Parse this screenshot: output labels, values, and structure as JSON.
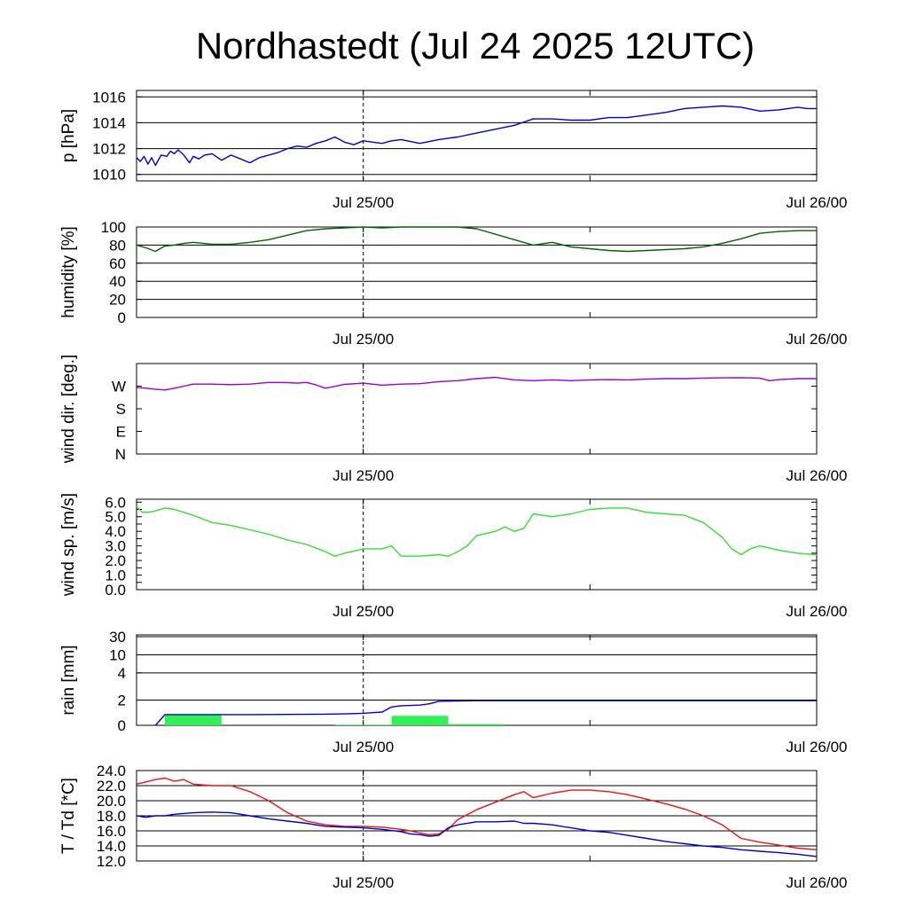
{
  "title": "Nordhastedt (Jul 24 2025 12UTC)",
  "colors": {
    "pressure": "#0000cc",
    "humidity": "#006400",
    "wind_dir": "#9900cc",
    "wind_speed": "#33dd33",
    "rain_accum": "#0000cc",
    "rain_bar": "#33ee55",
    "temperature": "#ee1111",
    "dewpoint": "#0000cc"
  },
  "chart_data": [
    {
      "type": "line",
      "name": "pressure",
      "ylabel": "p [hPa]",
      "x_ticks": [
        "Jul 25/00",
        "Jul 26/00"
      ],
      "x_range_hours": [
        0,
        36
      ],
      "ylim": [
        1009.5,
        1016.5
      ],
      "y_ticks": [
        1010,
        1012,
        1014,
        1016
      ],
      "y_tick_labels": [
        "1010",
        "1012",
        "1014",
        "1016"
      ],
      "grid_y": [
        1010,
        1012,
        1014,
        1016
      ],
      "series": [
        {
          "x": [
            0,
            0.2,
            0.4,
            0.6,
            0.8,
            1,
            1.3,
            1.6,
            1.8,
            2,
            2.2,
            2.5,
            2.8,
            3,
            3.3,
            3.6,
            4,
            4.5,
            5,
            5.5,
            6,
            6.5,
            7,
            7.5,
            8,
            8.5,
            9,
            9.5,
            10,
            10.5,
            11,
            11.5,
            12,
            12.5,
            13,
            13.5,
            14,
            15,
            16,
            17,
            18,
            19,
            20,
            21,
            22,
            23,
            24,
            25,
            26,
            27,
            28,
            29,
            30,
            31,
            32,
            33,
            34,
            35,
            35.5,
            36
          ],
          "y": [
            1011.3,
            1011.0,
            1011.4,
            1010.8,
            1011.3,
            1010.7,
            1011.5,
            1011.4,
            1011.8,
            1011.6,
            1011.9,
            1011.5,
            1010.9,
            1011.4,
            1011.2,
            1011.5,
            1011.6,
            1011.1,
            1011.5,
            1011.2,
            1010.9,
            1011.3,
            1011.5,
            1011.7,
            1012.0,
            1012.2,
            1012.1,
            1012.4,
            1012.6,
            1012.9,
            1012.5,
            1012.3,
            1012.6,
            1012.5,
            1012.4,
            1012.6,
            1012.7,
            1012.4,
            1012.7,
            1012.9,
            1013.2,
            1013.5,
            1013.8,
            1014.3,
            1014.3,
            1014.2,
            1014.2,
            1014.4,
            1014.4,
            1014.6,
            1014.8,
            1015.1,
            1015.2,
            1015.3,
            1015.2,
            1014.9,
            1015.0,
            1015.2,
            1015.1,
            1015.1
          ]
        }
      ]
    },
    {
      "type": "line",
      "name": "humidity",
      "ylabel": "humidity [%]",
      "x_ticks": [
        "Jul 25/00",
        "Jul 26/00"
      ],
      "x_range_hours": [
        0,
        36
      ],
      "ylim": [
        0,
        100
      ],
      "y_ticks": [
        0,
        20,
        40,
        60,
        80,
        100
      ],
      "y_tick_labels": [
        "0",
        "20",
        "40",
        "60",
        "80",
        "100"
      ],
      "grid_y": [
        20,
        40,
        60,
        80
      ],
      "series": [
        {
          "x": [
            0,
            0.5,
            1,
            1.5,
            2,
            2.5,
            3,
            4,
            5,
            6,
            7,
            8,
            9,
            10,
            11,
            12,
            13,
            14,
            15,
            16,
            17,
            18,
            19,
            20,
            21,
            22,
            23,
            24,
            25,
            26,
            27,
            28,
            29,
            30,
            31,
            32,
            33,
            34,
            35,
            36
          ],
          "y": [
            80,
            77,
            73,
            79,
            80,
            82,
            83,
            81,
            81,
            83,
            86,
            91,
            96,
            98,
            99,
            100,
            99,
            100,
            100,
            100,
            100,
            98,
            92,
            86,
            80,
            83,
            78,
            76,
            74,
            73,
            74,
            75,
            76,
            78,
            82,
            87,
            93,
            95,
            96,
            96
          ]
        }
      ]
    },
    {
      "type": "line",
      "name": "wind direction",
      "ylabel": "wind dir. [deg.]",
      "x_ticks": [
        "Jul 25/00",
        "Jul 26/00"
      ],
      "x_range_hours": [
        0,
        36
      ],
      "ylim": [
        0,
        360
      ],
      "y_ticks": [
        0,
        90,
        180,
        270
      ],
      "y_tick_labels": [
        "N",
        "E",
        "S",
        "W"
      ],
      "grid_y": [],
      "series": [
        {
          "x": [
            0,
            0.5,
            1,
            1.5,
            2,
            2.5,
            3,
            4,
            5,
            6,
            7,
            8,
            8.5,
            9,
            9.5,
            10,
            11,
            12,
            13,
            13.5,
            14,
            15,
            16,
            17,
            18,
            19,
            20,
            21,
            22,
            23,
            24,
            25,
            26,
            27,
            28,
            29,
            30,
            31,
            32,
            33,
            33.5,
            34,
            35,
            36
          ],
          "y": [
            265,
            262,
            258,
            255,
            262,
            270,
            278,
            278,
            276,
            278,
            285,
            284,
            282,
            285,
            275,
            262,
            277,
            282,
            274,
            276,
            278,
            280,
            288,
            292,
            300,
            305,
            295,
            292,
            295,
            292,
            295,
            296,
            295,
            298,
            300,
            300,
            302,
            303,
            304,
            302,
            292,
            296,
            300,
            300
          ]
        }
      ]
    },
    {
      "type": "line",
      "name": "wind speed",
      "ylabel": "wind sp. [m/s]",
      "x_ticks": [
        "Jul 25/00",
        "Jul 26/00"
      ],
      "x_range_hours": [
        0,
        36
      ],
      "ylim": [
        0,
        6.2
      ],
      "y_ticks": [
        0,
        0.5,
        1.0,
        1.5,
        2.0,
        2.5,
        3.0,
        3.5,
        4.0,
        4.5,
        5.0,
        5.5,
        6.0
      ],
      "y_tick_labels": [
        "0.0",
        "",
        "1.0",
        "",
        "2.0",
        "",
        "3.0",
        "",
        "4.0",
        "",
        "5.0",
        "",
        "6.0"
      ],
      "grid_y": [],
      "series": [
        {
          "x": [
            0,
            0.3,
            0.6,
            1,
            1.5,
            2,
            3,
            4,
            5,
            6,
            7,
            8,
            9,
            10,
            10.5,
            11,
            12,
            13,
            13.5,
            14,
            15,
            16,
            16.5,
            17,
            17.5,
            18,
            19,
            19.5,
            20,
            20.5,
            21,
            22,
            23,
            24,
            25,
            26,
            27,
            28,
            29,
            30,
            31,
            31.5,
            32,
            32.5,
            33,
            34,
            35,
            36
          ],
          "y": [
            5.7,
            5.3,
            5.3,
            5.4,
            5.6,
            5.5,
            5.1,
            4.6,
            4.4,
            4.1,
            3.8,
            3.4,
            3.1,
            2.6,
            2.3,
            2.5,
            2.8,
            2.8,
            3.0,
            2.3,
            2.3,
            2.4,
            2.3,
            2.6,
            3.0,
            3.7,
            4.0,
            4.3,
            4.0,
            4.2,
            5.2,
            5.0,
            5.2,
            5.5,
            5.6,
            5.6,
            5.3,
            5.2,
            5.1,
            4.6,
            3.6,
            2.8,
            2.4,
            2.8,
            3.0,
            2.7,
            2.5,
            2.4
          ]
        }
      ]
    },
    {
      "type": "bar",
      "name": "rain",
      "ylabel": "rain [mm]",
      "x_ticks": [
        "Jul 25/00",
        "Jul 26/00"
      ],
      "x_range_hours": [
        0,
        36
      ],
      "y_ticks": [
        0,
        2,
        4,
        10,
        30
      ],
      "y_tick_labels": [
        "0",
        "2",
        "4",
        "10",
        "30"
      ],
      "grid_y": [
        2,
        4,
        10,
        30
      ],
      "bars": [
        {
          "start": 1.5,
          "end": 4.5,
          "value": 0.8
        },
        {
          "start": 10.5,
          "end": 13.5,
          "value": 0.05
        },
        {
          "start": 13.5,
          "end": 16.5,
          "value": 0.75
        },
        {
          "start": 16.5,
          "end": 19.5,
          "value": 0.1
        }
      ],
      "series": [
        {
          "x": [
            1.0,
            1.5,
            2,
            4,
            6,
            8,
            10,
            11,
            12,
            12.5,
            13,
            13.5,
            14,
            15,
            15.5,
            16,
            18,
            20,
            24,
            28,
            32,
            36
          ],
          "y": [
            0,
            0.85,
            0.85,
            0.85,
            0.85,
            0.86,
            0.88,
            0.9,
            0.95,
            1.0,
            1.05,
            1.45,
            1.55,
            1.6,
            1.7,
            1.9,
            1.95,
            1.95,
            1.95,
            1.95,
            1.95,
            1.95
          ]
        }
      ]
    },
    {
      "type": "line",
      "name": "temperature / dewpoint",
      "ylabel": "T / Td [*C]",
      "x_ticks": [
        "Jul 25/00",
        "Jul 26/00"
      ],
      "x_range_hours": [
        0,
        36
      ],
      "ylim": [
        12,
        24
      ],
      "y_ticks": [
        12,
        14,
        16,
        18,
        20,
        22,
        24
      ],
      "y_tick_labels": [
        "12.0",
        "14.0",
        "16.0",
        "18.0",
        "20.0",
        "22.0",
        "24.0"
      ],
      "grid_y": [
        14,
        16,
        18,
        20,
        22,
        24
      ],
      "series": [
        {
          "name": "T",
          "x": [
            0,
            0.5,
            1,
            1.5,
            2,
            2.5,
            3,
            4,
            5,
            6,
            7,
            8,
            9,
            10,
            11,
            12,
            13,
            14,
            14.5,
            15,
            15.5,
            16,
            16.5,
            17,
            18,
            19,
            20,
            20.5,
            21,
            22,
            23,
            24,
            25,
            26,
            27,
            28,
            29,
            30,
            31,
            32,
            33,
            34,
            35,
            36
          ],
          "y": [
            22.2,
            22.5,
            22.8,
            23.0,
            22.6,
            22.8,
            22.2,
            22.0,
            22.0,
            21.2,
            20.0,
            18.4,
            17.3,
            16.8,
            16.6,
            16.6,
            16.5,
            16.2,
            16.0,
            15.7,
            15.5,
            15.6,
            16.2,
            17.5,
            18.8,
            19.8,
            20.8,
            21.2,
            20.4,
            21.0,
            21.4,
            21.4,
            21.2,
            20.8,
            20.2,
            19.6,
            18.9,
            18.0,
            16.8,
            15.0,
            14.5,
            14.1,
            13.7,
            13.5
          ]
        },
        {
          "name": "Td",
          "x": [
            0,
            0.5,
            1,
            1.5,
            2,
            3,
            4,
            5,
            6,
            7,
            8,
            9,
            10,
            11,
            12,
            13,
            14,
            14.5,
            15,
            15.5,
            16,
            16.5,
            17,
            18,
            19,
            20,
            20.5,
            21,
            22,
            23,
            24,
            25,
            26,
            27,
            28,
            29,
            30,
            31,
            32,
            33,
            34,
            35,
            36
          ],
          "y": [
            18.0,
            17.8,
            18.0,
            18.0,
            18.2,
            18.4,
            18.5,
            18.4,
            18.0,
            17.6,
            17.3,
            17.0,
            16.6,
            16.5,
            16.4,
            16.2,
            15.9,
            15.6,
            15.5,
            15.3,
            15.4,
            16.4,
            16.8,
            17.2,
            17.2,
            17.3,
            17.0,
            17.0,
            16.8,
            16.4,
            16.0,
            15.8,
            15.4,
            15.0,
            14.6,
            14.3,
            14.0,
            13.8,
            13.5,
            13.3,
            13.1,
            12.9,
            12.6
          ]
        }
      ]
    }
  ]
}
